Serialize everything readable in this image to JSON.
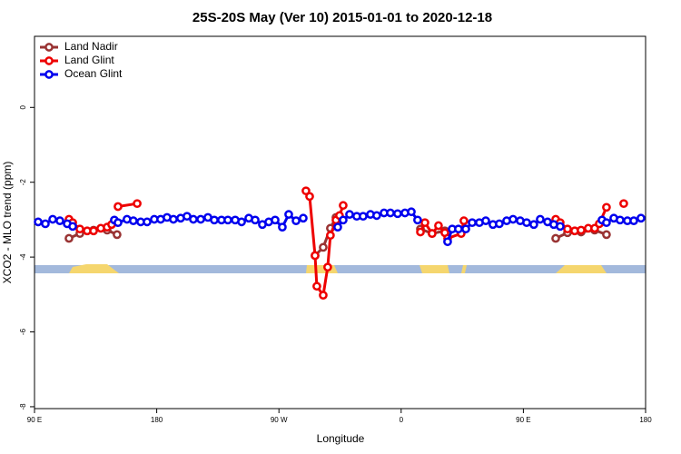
{
  "chart_data": {
    "type": "line",
    "title": "25S-20S May (Ver 10)   2015-01-01 to 2020-12-18",
    "xlabel": "Longitude",
    "ylabel": "XCO2 - MLO trend (ppm)",
    "xlim": [
      90,
      540
    ],
    "ylim": [
      -8.05,
      1.9
    ],
    "xticks": [
      {
        "value": 90,
        "label": "90 E"
      },
      180,
      {
        "value": 270,
        "label": "90 W"
      },
      {
        "value": 360,
        "label": "0"
      },
      {
        "value": 450,
        "label": "90 E"
      },
      {
        "value": 540,
        "label": "180"
      }
    ],
    "yticks": [
      0,
      -2,
      -4,
      -6,
      -8
    ],
    "legend": "top-left",
    "series": [
      {
        "name": "Land Nadir",
        "color": "#993333",
        "x": [
          115.4,
          123.4,
          133.5,
          143.5,
          150.8,
          null,
          296.6,
          302.6,
          307.9,
          312.0,
          null,
          374.2,
          382.8,
          392.2,
          null,
          473.8,
          482.5,
          492.5,
          502.5,
          511.2
        ],
        "values": [
          -3.5,
          -3.37,
          -3.28,
          -3.28,
          -3.4,
          null,
          -3.96,
          -3.74,
          -3.23,
          -2.94,
          null,
          -3.25,
          -3.37,
          -3.3,
          null,
          -3.5,
          -3.35,
          -3.33,
          -3.28,
          -3.4
        ]
      },
      {
        "name": "Land Glint",
        "color": "#ee0000",
        "x": [
          115.4,
          118.1,
          123.4,
          128.8,
          133.5,
          138.8,
          143.5,
          146.8,
          null,
          151.5,
          165.6,
          null,
          289.9,
          292.6,
          296.6,
          297.9,
          302.6,
          305.9,
          307.9,
          312.0,
          314.6,
          317.3,
          null,
          374.2,
          377.5,
          382.8,
          387.5,
          392.2,
          394.2,
          404.2,
          406.2,
          null,
          473.8,
          477.1,
          482.5,
          487.8,
          492.5,
          497.8,
          502.5,
          505.9,
          511.2,
          null,
          523.9
        ],
        "values": [
          -2.99,
          -3.08,
          -3.25,
          -3.3,
          -3.3,
          -3.23,
          -3.2,
          -3.13,
          null,
          -2.65,
          -2.57,
          null,
          -2.23,
          -2.38,
          -3.96,
          -4.78,
          -5.02,
          -4.27,
          -3.42,
          -3.01,
          -2.89,
          -2.62,
          null,
          -3.33,
          -3.08,
          -3.37,
          -3.16,
          -3.35,
          -3.5,
          -3.37,
          -3.03,
          null,
          -2.99,
          -3.08,
          -3.25,
          -3.3,
          -3.28,
          -3.23,
          -3.23,
          -3.11,
          -2.67,
          null,
          -2.57
        ]
      },
      {
        "name": "Ocean Glint",
        "color": "#0000ee",
        "x": [
          92.7,
          98.0,
          103.4,
          108.7,
          114.1,
          118.1,
          null,
          148.8,
          151.5,
          158.1,
          162.8,
          168.2,
          172.9,
          178.2,
          182.9,
          187.6,
          192.3,
          197.6,
          202.3,
          207.0,
          212.4,
          217.7,
          222.4,
          227.7,
          232.4,
          237.8,
          242.5,
          247.8,
          252.5,
          257.8,
          262.5,
          267.2,
          272.5,
          277.2,
          282.6,
          287.9,
          null,
          313.3,
          317.3,
          322.0,
          327.3,
          332.0,
          337.4,
          342.0,
          347.4,
          352.1,
          357.4,
          362.8,
          367.5,
          372.1,
          null,
          394.2,
          397.6,
          402.2,
          407.6,
          412.3,
          417.6,
          422.3,
          427.6,
          432.3,
          437.7,
          442.4,
          447.7,
          452.4,
          457.7,
          462.4,
          467.8,
          472.4,
          477.1,
          null,
          507.9,
          511.2,
          516.6,
          521.2,
          526.6,
          531.3,
          536.6
        ],
        "values": [
          -3.06,
          -3.11,
          -2.99,
          -3.03,
          -3.11,
          -3.18,
          null,
          -3.01,
          -3.08,
          -2.99,
          -3.03,
          -3.06,
          -3.06,
          -2.99,
          -2.99,
          -2.94,
          -2.99,
          -2.96,
          -2.91,
          -2.99,
          -2.99,
          -2.94,
          -3.01,
          -3.01,
          -3.01,
          -3.01,
          -3.06,
          -2.96,
          -3.01,
          -3.13,
          -3.06,
          -3.01,
          -3.2,
          -2.86,
          -3.03,
          -2.96,
          null,
          -3.2,
          -3.01,
          -2.86,
          -2.91,
          -2.91,
          -2.86,
          -2.89,
          -2.82,
          -2.82,
          -2.84,
          -2.82,
          -2.79,
          -3.01,
          null,
          -3.59,
          -3.25,
          -3.25,
          -3.25,
          -3.08,
          -3.08,
          -3.03,
          -3.13,
          -3.11,
          -3.03,
          -2.99,
          -3.03,
          -3.08,
          -3.13,
          -2.99,
          -3.06,
          -3.13,
          -3.18,
          null,
          -3.01,
          -3.08,
          -2.96,
          -3.01,
          -3.03,
          -3.03,
          -2.96
        ]
      }
    ]
  }
}
